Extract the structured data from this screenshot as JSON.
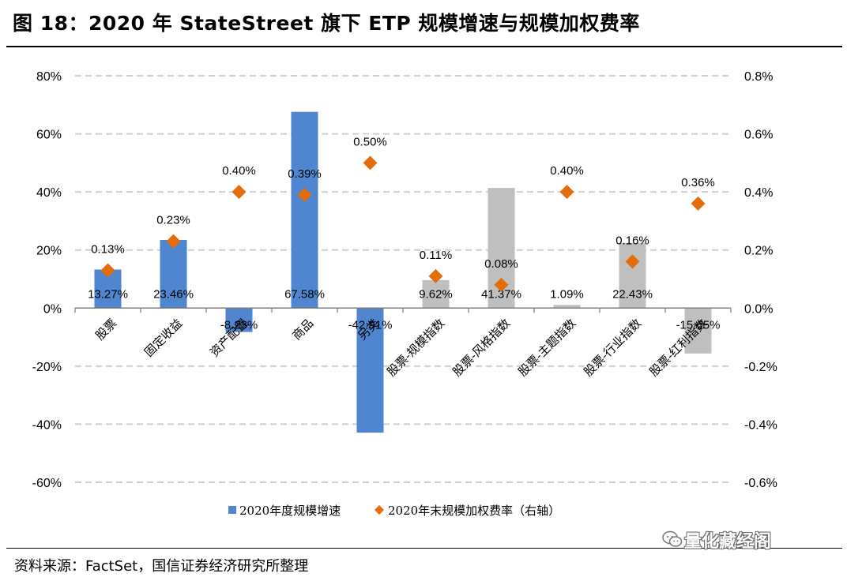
{
  "header": {
    "title": "图 18：2020 年 StateStreet 旗下 ETP 规模增速与规模加权费率"
  },
  "footer": {
    "source": "资料来源：FactSet，国信证券经济研究所整理",
    "watermark": "量化藏经阁"
  },
  "chart_data": {
    "type": "bar",
    "title": "",
    "categories": [
      "股票",
      "固定收益",
      "资产配置",
      "商品",
      "另类",
      "股票-规模指数",
      "股票-风格指数",
      "股票-主题指数",
      "股票-行业指数",
      "股票-红利指数"
    ],
    "series": [
      {
        "name": "2020年度规模增速",
        "type": "bar",
        "axis": "left",
        "values": [
          13.27,
          23.46,
          -8.23,
          67.58,
          -42.91,
          9.62,
          41.37,
          1.09,
          22.43,
          -15.65
        ],
        "labels": [
          "13.27%",
          "23.46%",
          "-8.23%",
          "67.58%",
          "-42.91%",
          "9.62%",
          "41.37%",
          "1.09%",
          "22.43%",
          "-15.65%"
        ],
        "colors": [
          "#4f86cf",
          "#4f86cf",
          "#4f86cf",
          "#4f86cf",
          "#4f86cf",
          "#bfbfbf",
          "#bfbfbf",
          "#bfbfbf",
          "#bfbfbf",
          "#bfbfbf"
        ]
      },
      {
        "name": "2020年末规模加权费率（右轴）",
        "type": "scatter",
        "axis": "right",
        "marker": "diamond",
        "values": [
          0.13,
          0.23,
          0.4,
          0.39,
          0.5,
          0.11,
          0.08,
          0.4,
          0.16,
          0.36
        ],
        "labels": [
          "0.13%",
          "0.23%",
          "0.40%",
          "0.39%",
          "0.50%",
          "0.11%",
          "0.08%",
          "0.40%",
          "0.16%",
          "0.36%"
        ],
        "color": "#e46c0a"
      }
    ],
    "y_left": {
      "min": -60,
      "max": 80,
      "ticks": [
        80,
        60,
        40,
        20,
        0,
        -20,
        -40,
        -60
      ],
      "tick_labels": [
        "80%",
        "60%",
        "40%",
        "20%",
        "0%",
        "-20%",
        "-40%",
        "-60%"
      ]
    },
    "y_right": {
      "min": -0.6,
      "max": 0.8,
      "ticks": [
        0.8,
        0.6,
        0.4,
        0.2,
        0.0,
        -0.2,
        -0.4,
        -0.6
      ],
      "tick_labels": [
        "0.8%",
        "0.6%",
        "0.4%",
        "0.2%",
        "0.0%",
        "-0.2%",
        "-0.4%",
        "-0.6%"
      ]
    },
    "grid": true,
    "legend_position": "bottom",
    "legend": [
      "2020年度规模增速",
      "2020年末规模加权费率（右轴）"
    ],
    "legend_bar_color": "#4f86cf",
    "legend_marker_color": "#e46c0a"
  }
}
